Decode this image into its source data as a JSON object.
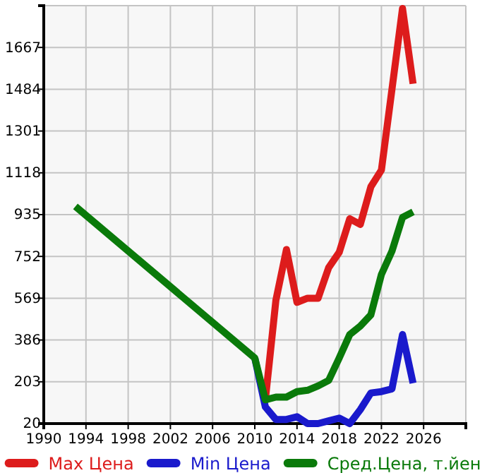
{
  "chart_data": {
    "type": "line",
    "xlim": [
      1990,
      2030
    ],
    "xticks": [
      1990,
      1994,
      1998,
      2002,
      2006,
      2010,
      2014,
      2018,
      2022,
      2026,
      {
        "value": 2030,
        "label": null
      }
    ],
    "ylim": [
      20,
      1850
    ],
    "yticks": [
      20,
      203,
      386,
      569,
      752,
      935,
      1118,
      1301,
      1484,
      1667,
      {
        "value": 1850,
        "label": null
      }
    ],
    "grid": true,
    "legend": "bottom",
    "line_style": "solid",
    "marker": "none",
    "series": [
      {
        "name": "Max Цена",
        "color": "#dd1c1c",
        "x": [
          2011,
          2012,
          2013,
          2014,
          2015,
          2016,
          2017,
          2018,
          2019,
          2020,
          2021,
          2022,
          2023,
          2024,
          2025
        ],
        "values": [
          124,
          560,
          782,
          551,
          569,
          569,
          703,
          770,
          917,
          892,
          1057,
          1130,
          1484,
          1838,
          1508
        ]
      },
      {
        "name": "Min Цена",
        "color": "#1a1acc",
        "x": [
          2010,
          2011,
          2012,
          2013,
          2014,
          2015,
          2016,
          2017,
          2018,
          2019,
          2020,
          2021,
          2022,
          2023,
          2024,
          2025
        ],
        "values": [
          307,
          93,
          38,
          38,
          50,
          20,
          20,
          32,
          44,
          20,
          81,
          154,
          160,
          172,
          410,
          197
        ]
      },
      {
        "name": "Сред.Цена, т.йен",
        "color": "#0a7a0a",
        "x": [
          1993,
          2010,
          2011,
          2012,
          2013,
          2014,
          2015,
          2016,
          2017,
          2018,
          2019,
          2020,
          2021,
          2022,
          2023,
          2024,
          2025
        ],
        "values": [
          971,
          307,
          124,
          136,
          136,
          160,
          166,
          185,
          209,
          307,
          410,
          447,
          496,
          673,
          775,
          923,
          947
        ]
      }
    ]
  }
}
